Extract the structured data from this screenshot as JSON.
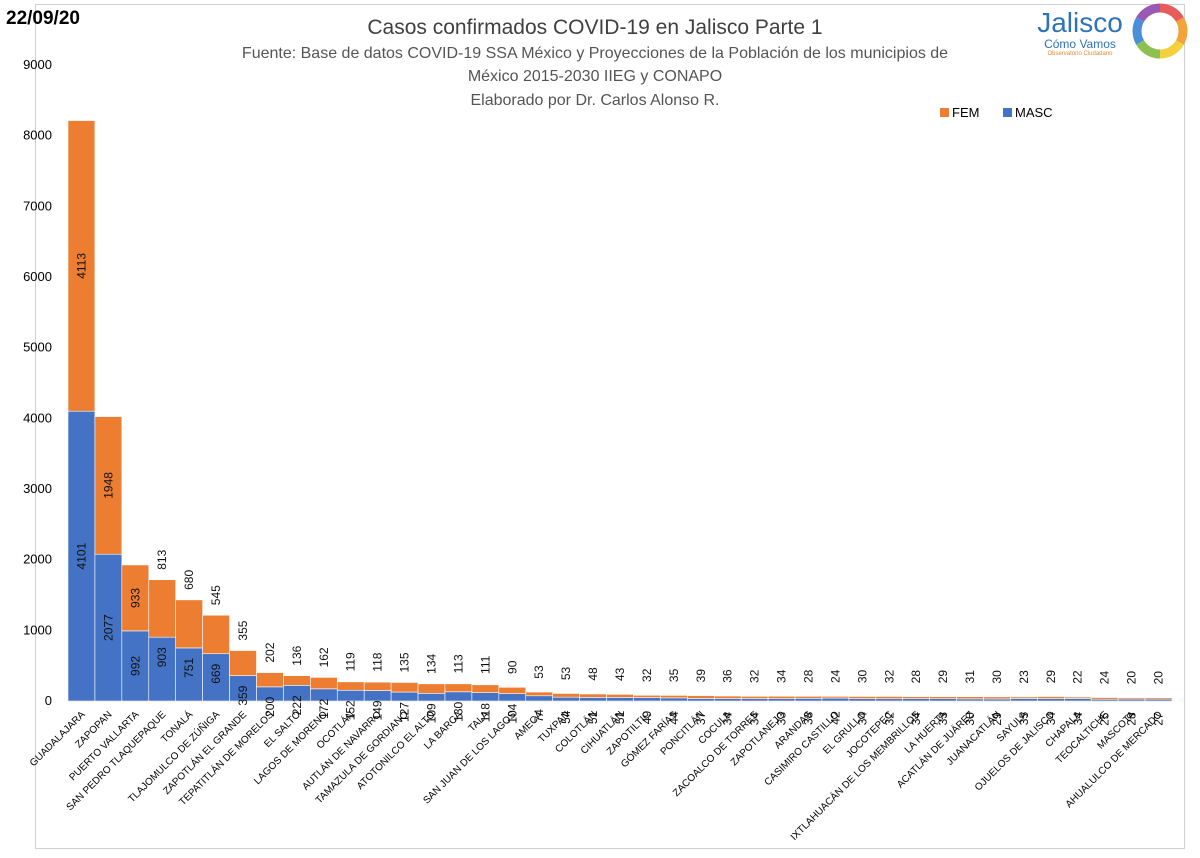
{
  "header": {
    "date": "22/09/20",
    "source_line1": "Fuente: Base de datos COVID-19 SSA México y Proyecciones de la Población de los municipios de",
    "source_line2": "México 2015-2030 IIEG y CONAPO",
    "author": "Elaborado por Dr. Carlos Alonso R."
  },
  "logo": {
    "title": "Jalisco",
    "subtitle": "Cómo Vamos",
    "tagline": "Observatorio Ciudadano",
    "colors": [
      "#e85b5b",
      "#f2a33a",
      "#f4d03f",
      "#8cc152",
      "#4a90d9",
      "#9b59b6"
    ]
  },
  "chart_data": {
    "type": "bar",
    "stacked": true,
    "title": "Casos confirmados COVID-19 en Jalisco Parte 1",
    "ylim": [
      0,
      9000
    ],
    "yticks": [
      "0",
      "1000",
      "2000",
      "3000",
      "4000",
      "5000",
      "6000",
      "7000",
      "8000",
      "9000"
    ],
    "legend_position": "top-right",
    "categories": [
      "GUADALAJARA",
      "ZAPOPAN",
      "PUERTO VALLARTA",
      "SAN PEDRO TLAQUEPAQUE",
      "TONALÁ",
      "TLAJOMULCO DE ZÚÑIGA",
      "ZAPOTLÁN EL GRANDE",
      "TEPATITLÁN DE MORELOS",
      "EL SALTO",
      "LAGOS DE MORENO",
      "OCOTLÁN",
      "AUTLÁN DE NAVARRO",
      "TAMAZULA DE GORDIANO",
      "ATOTONILCO EL ALTO",
      "LA BARCA",
      "TALA",
      "SAN JUAN DE LOS LAGOS",
      "AMECA",
      "TUXPAN",
      "COLOTLÁN",
      "CIHUATLÁN",
      "ZAPOTILTIC",
      "GÓMEZ FARÍAS",
      "PONCITLÁN",
      "COCULA",
      "ZACOALCO DE TORRES",
      "ZAPOTLANEJO",
      "ARANDAS",
      "CASIMIRO CASTILLO",
      "EL GRULLO",
      "JOCOTEPEC",
      "IXTLAHUACÁN DE LOS MEMBRILLOS",
      "LA HUERTA",
      "ACATLÁN DE JUÁREZ",
      "JUANACATLÁN",
      "SAYULA",
      "OJUELOS DE JALISCO",
      "CHAPALA",
      "TEOCALTICHE",
      "MASCOTA",
      "AHUALULCO DE MERCADO"
    ],
    "series": [
      {
        "name": "MASC",
        "color": "#4472c4",
        "values": [
          4101,
          2077,
          992,
          903,
          751,
          669,
          359,
          200,
          222,
          172,
          152,
          149,
          127,
          109,
          130,
          118,
          104,
          74,
          54,
          51,
          51,
          49,
          44,
          37,
          34,
          34,
          33,
          38,
          42,
          34,
          32,
          34,
          33,
          30,
          29,
          35,
          34,
          34,
          25,
          28,
          27
        ]
      },
      {
        "name": "FEM",
        "color": "#ed7d31",
        "values": [
          4113,
          1948,
          933,
          813,
          680,
          545,
          355,
          202,
          136,
          162,
          119,
          118,
          135,
          134,
          113,
          111,
          90,
          53,
          53,
          48,
          43,
          32,
          35,
          39,
          36,
          32,
          34,
          28,
          24,
          30,
          32,
          28,
          29,
          31,
          30,
          23,
          29,
          22,
          24,
          20,
          20
        ]
      }
    ]
  }
}
